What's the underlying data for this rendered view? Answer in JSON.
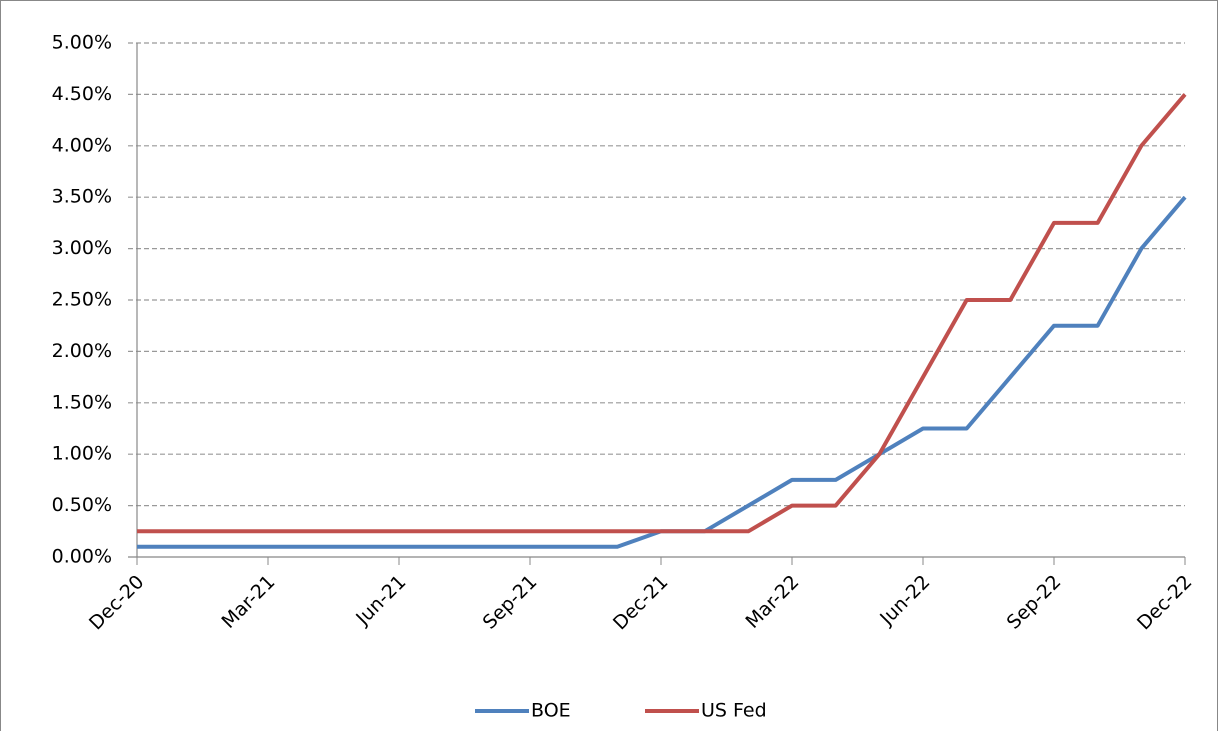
{
  "chart_data": {
    "type": "line",
    "categories": [
      "Dec-20",
      null,
      null,
      "Mar-21",
      null,
      null,
      "Jun-21",
      null,
      null,
      "Sep-21",
      null,
      null,
      "Dec-21",
      null,
      null,
      "Mar-22",
      null,
      null,
      "Jun-22",
      null,
      null,
      "Sep-22",
      null,
      null,
      "Dec-22"
    ],
    "series": [
      {
        "name": "BOE",
        "color": "#4f81bd",
        "values": [
          0.1,
          0.1,
          0.1,
          0.1,
          0.1,
          0.1,
          0.1,
          0.1,
          0.1,
          0.1,
          0.1,
          0.1,
          0.25,
          0.25,
          0.5,
          0.75,
          0.75,
          1.0,
          1.25,
          1.25,
          1.75,
          2.25,
          2.25,
          3.0,
          3.5
        ]
      },
      {
        "name": "US Fed",
        "color": "#c0504d",
        "values": [
          0.25,
          0.25,
          0.25,
          0.25,
          0.25,
          0.25,
          0.25,
          0.25,
          0.25,
          0.25,
          0.25,
          0.25,
          0.25,
          0.25,
          0.25,
          0.5,
          0.5,
          1.0,
          1.75,
          2.5,
          2.5,
          3.25,
          3.25,
          4.0,
          4.5
        ]
      }
    ],
    "ylim": [
      0,
      5
    ],
    "yticks": [
      {
        "value": 0,
        "label": "0.00%"
      },
      {
        "value": 0.5,
        "label": "0.50%"
      },
      {
        "value": 1,
        "label": "1.00%"
      },
      {
        "value": 1.5,
        "label": "1.50%"
      },
      {
        "value": 2,
        "label": "2.00%"
      },
      {
        "value": 2.5,
        "label": "2.50%"
      },
      {
        "value": 3,
        "label": "3.00%"
      },
      {
        "value": 3.5,
        "label": "3.50%"
      },
      {
        "value": 4,
        "label": "4.00%"
      },
      {
        "value": 4.5,
        "label": "4.50%"
      },
      {
        "value": 5,
        "label": "5.00%"
      }
    ],
    "grid": true,
    "legend": "bottom"
  }
}
